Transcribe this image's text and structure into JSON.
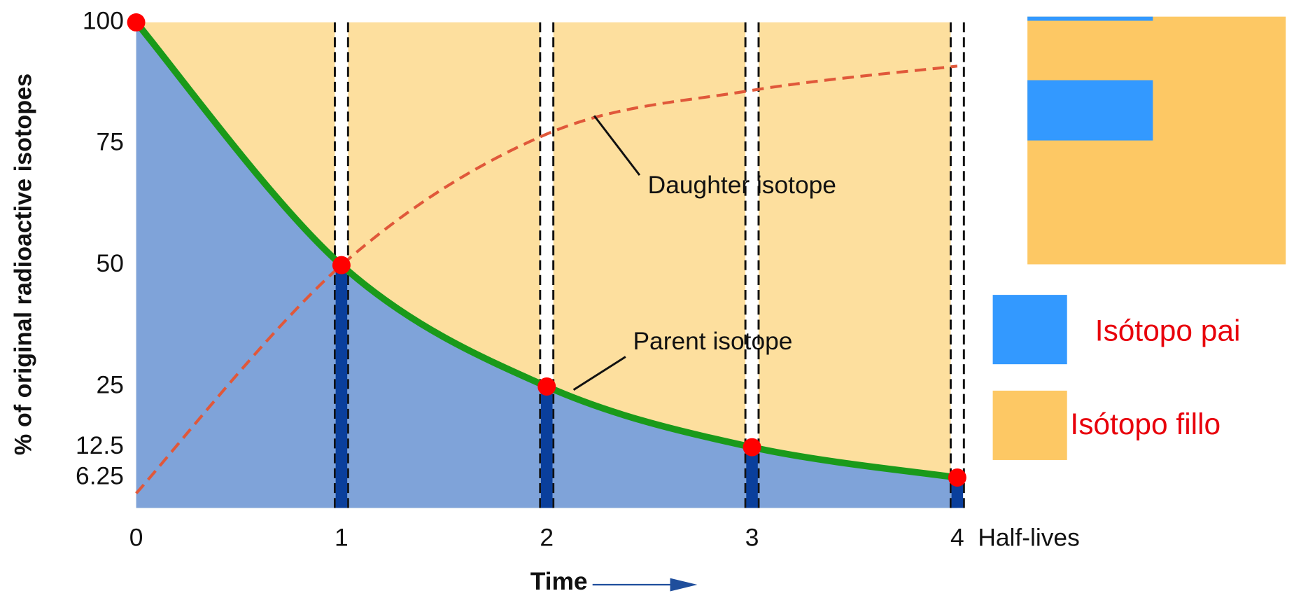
{
  "chart_data": {
    "type": "line",
    "x": [
      0,
      1,
      2,
      3,
      4
    ],
    "series": [
      {
        "name": "Isótopo pai",
        "color": "#3399ff",
        "values": [
          100,
          50,
          25,
          12.5,
          6.25
        ]
      },
      {
        "name": "Isótopo fillo",
        "color": "#fdc864",
        "values": [
          3,
          50,
          77,
          86,
          91
        ]
      }
    ],
    "xlim": [
      0,
      4
    ],
    "xticks": [
      0,
      1,
      2,
      3,
      4
    ],
    "ylim": [
      0,
      100
    ],
    "yticks": [
      6.25,
      12.5,
      25,
      50,
      75,
      100
    ],
    "x_axis_note": "Half-lives",
    "xlabel": "Time",
    "ylabel": "% of original radioactive isotopes",
    "annotations": [
      "Daughter isotope",
      "Parent isotope"
    ]
  }
}
